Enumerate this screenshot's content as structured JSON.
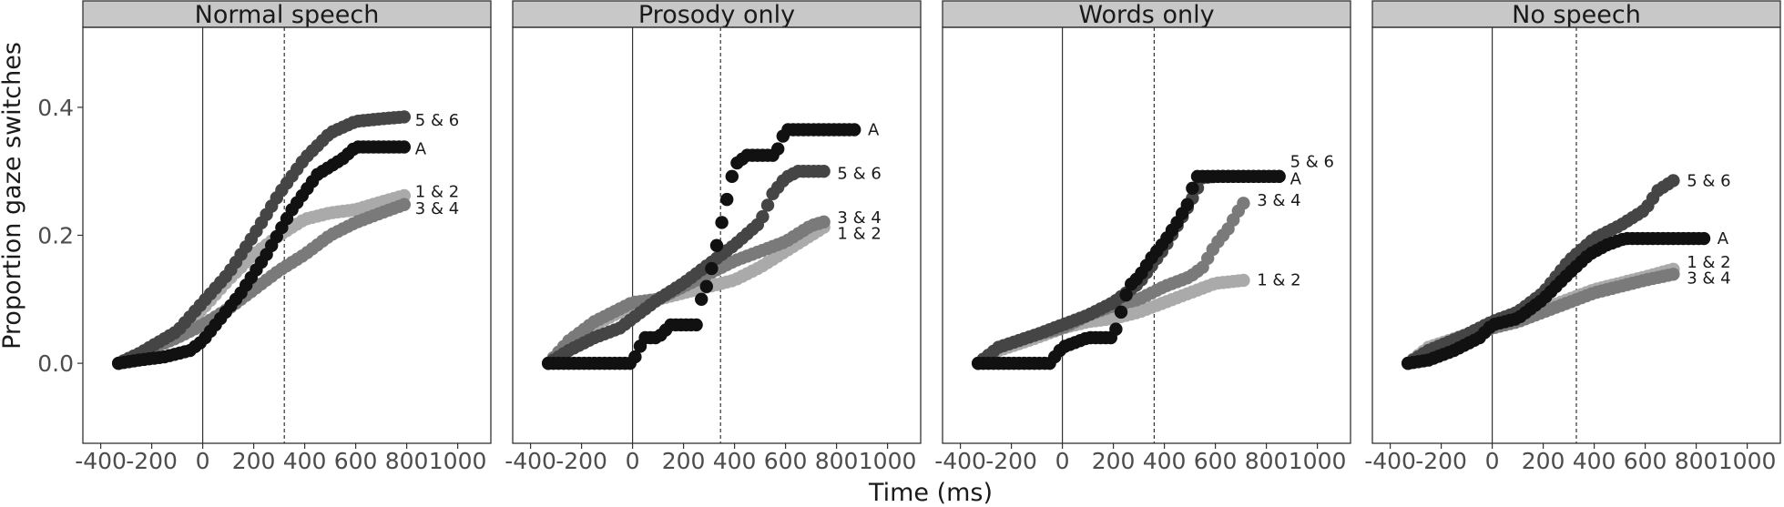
{
  "colors": {
    "A": "#111111",
    "5 & 6": "#454545",
    "3 & 4": "#7a7a7a",
    "1 & 2": "#aaaaaa",
    "strip": "#c8c8c8"
  },
  "chart_data": {
    "type": "scatter",
    "xlabel": "Time (ms)",
    "ylabel": "Proportion gaze switches",
    "xlim": [
      -470,
      1130
    ],
    "ylim": [
      -0.125,
      0.525
    ],
    "x_ticks": [
      -400,
      -200,
      0,
      200,
      400,
      600,
      800,
      1000
    ],
    "x_tick_labels": [
      "-400",
      "-200",
      "0",
      "200",
      "400",
      "600",
      "800",
      "1000"
    ],
    "y_ticks": [
      0.0,
      0.2,
      0.4
    ],
    "y_tick_labels": [
      "0.0",
      "0.2",
      "0.4"
    ],
    "grid": false,
    "series_order": [
      "1 & 2",
      "3 & 4",
      "5 & 6",
      "A"
    ],
    "panels": [
      {
        "title": "Normal speech",
        "vline_dashed": 320,
        "label_positions": {
          "5 & 6": 0.38,
          "A": 0.335,
          "1 & 2": 0.268,
          "3 & 4": 0.242
        },
        "series": [
          {
            "name": "1 & 2",
            "end_x": 790,
            "points": [
              [
                -330,
                0
              ],
              [
                -250,
                0.015
              ],
              [
                -100,
                0.045
              ],
              [
                0,
                0.085
              ],
              [
                100,
                0.13
              ],
              [
                200,
                0.17
              ],
              [
                300,
                0.2
              ],
              [
                400,
                0.225
              ],
              [
                500,
                0.235
              ],
              [
                600,
                0.24
              ],
              [
                700,
                0.252
              ],
              [
                790,
                0.262
              ]
            ]
          },
          {
            "name": "3 & 4",
            "end_x": 790,
            "points": [
              [
                -330,
                0
              ],
              [
                -250,
                0.015
              ],
              [
                -100,
                0.04
              ],
              [
                0,
                0.06
              ],
              [
                100,
                0.085
              ],
              [
                200,
                0.115
              ],
              [
                300,
                0.145
              ],
              [
                400,
                0.17
              ],
              [
                500,
                0.2
              ],
              [
                600,
                0.22
              ],
              [
                700,
                0.235
              ],
              [
                790,
                0.248
              ]
            ]
          },
          {
            "name": "5 & 6",
            "end_x": 790,
            "points": [
              [
                -330,
                0
              ],
              [
                -250,
                0.015
              ],
              [
                -100,
                0.05
              ],
              [
                0,
                0.095
              ],
              [
                100,
                0.14
              ],
              [
                200,
                0.2
              ],
              [
                300,
                0.265
              ],
              [
                400,
                0.32
              ],
              [
                500,
                0.36
              ],
              [
                600,
                0.378
              ],
              [
                700,
                0.382
              ],
              [
                790,
                0.385
              ]
            ]
          },
          {
            "name": "A",
            "end_x": 790,
            "points": [
              [
                -330,
                0
              ],
              [
                -250,
                0.005
              ],
              [
                -150,
                0.01
              ],
              [
                -50,
                0.02
              ],
              [
                0,
                0.035
              ],
              [
                50,
                0.06
              ],
              [
                150,
                0.11
              ],
              [
                250,
                0.17
              ],
              [
                350,
                0.24
              ],
              [
                450,
                0.295
              ],
              [
                550,
                0.32
              ],
              [
                600,
                0.338
              ],
              [
                790,
                0.338
              ]
            ]
          }
        ]
      },
      {
        "title": "Prosody only",
        "vline_dashed": 345,
        "label_positions": {
          "A": 0.365,
          "5 & 6": 0.297,
          "3 & 4": 0.228,
          "1 & 2": 0.203
        },
        "series": [
          {
            "name": "1 & 2",
            "end_x": 760,
            "points": [
              [
                -330,
                0
              ],
              [
                -250,
                0.03
              ],
              [
                -150,
                0.06
              ],
              [
                -50,
                0.08
              ],
              [
                0,
                0.09
              ],
              [
                100,
                0.1
              ],
              [
                200,
                0.11
              ],
              [
                300,
                0.12
              ],
              [
                400,
                0.13
              ],
              [
                500,
                0.15
              ],
              [
                600,
                0.175
              ],
              [
                700,
                0.2
              ],
              [
                760,
                0.215
              ]
            ]
          },
          {
            "name": "3 & 4",
            "end_x": 760,
            "points": [
              [
                -330,
                0
              ],
              [
                -250,
                0.035
              ],
              [
                -150,
                0.065
              ],
              [
                -50,
                0.085
              ],
              [
                0,
                0.095
              ],
              [
                100,
                0.1
              ],
              [
                200,
                0.12
              ],
              [
                300,
                0.14
              ],
              [
                400,
                0.16
              ],
              [
                500,
                0.175
              ],
              [
                600,
                0.19
              ],
              [
                700,
                0.215
              ],
              [
                760,
                0.222
              ]
            ]
          },
          {
            "name": "5 & 6",
            "end_x": 760,
            "points": [
              [
                -330,
                0
              ],
              [
                -250,
                0.02
              ],
              [
                -150,
                0.04
              ],
              [
                -50,
                0.055
              ],
              [
                0,
                0.07
              ],
              [
                100,
                0.1
              ],
              [
                200,
                0.125
              ],
              [
                300,
                0.155
              ],
              [
                400,
                0.185
              ],
              [
                500,
                0.22
              ],
              [
                550,
                0.265
              ],
              [
                600,
                0.29
              ],
              [
                650,
                0.3
              ],
              [
                760,
                0.3
              ]
            ]
          },
          {
            "name": "A",
            "end_x": 880,
            "points": [
              [
                -330,
                0
              ],
              [
                -200,
                0
              ],
              [
                -100,
                0
              ],
              [
                0,
                0
              ],
              [
                20,
                0.02
              ],
              [
                50,
                0.04
              ],
              [
                100,
                0.04
              ],
              [
                150,
                0.06
              ],
              [
                250,
                0.06
              ],
              [
                270,
                0.1
              ],
              [
                300,
                0.13
              ],
              [
                350,
                0.22
              ],
              [
                400,
                0.31
              ],
              [
                450,
                0.325
              ],
              [
                560,
                0.325
              ],
              [
                600,
                0.365
              ],
              [
                880,
                0.365
              ]
            ]
          }
        ]
      },
      {
        "title": "Words only",
        "vline_dashed": 360,
        "label_positions": {
          "5 & 6": 0.315,
          "A": 0.288,
          "3 & 4": 0.255,
          "1 & 2": 0.13
        },
        "series": [
          {
            "name": "1 & 2",
            "end_x": 720,
            "points": [
              [
                -330,
                0
              ],
              [
                -250,
                0.02
              ],
              [
                -100,
                0.04
              ],
              [
                0,
                0.055
              ],
              [
                100,
                0.065
              ],
              [
                200,
                0.07
              ],
              [
                300,
                0.08
              ],
              [
                400,
                0.095
              ],
              [
                500,
                0.11
              ],
              [
                600,
                0.125
              ],
              [
                720,
                0.13
              ]
            ]
          },
          {
            "name": "3 & 4",
            "end_x": 720,
            "points": [
              [
                -330,
                0
              ],
              [
                -250,
                0.025
              ],
              [
                -100,
                0.045
              ],
              [
                0,
                0.055
              ],
              [
                100,
                0.075
              ],
              [
                200,
                0.09
              ],
              [
                300,
                0.1
              ],
              [
                400,
                0.12
              ],
              [
                500,
                0.135
              ],
              [
                550,
                0.15
              ],
              [
                600,
                0.185
              ],
              [
                650,
                0.21
              ],
              [
                700,
                0.245
              ],
              [
                720,
                0.255
              ]
            ]
          },
          {
            "name": "5 & 6",
            "end_x": 850,
            "points": [
              [
                -330,
                0
              ],
              [
                -250,
                0.025
              ],
              [
                -100,
                0.045
              ],
              [
                0,
                0.06
              ],
              [
                100,
                0.075
              ],
              [
                200,
                0.095
              ],
              [
                300,
                0.125
              ],
              [
                400,
                0.18
              ],
              [
                450,
                0.215
              ],
              [
                500,
                0.25
              ],
              [
                550,
                0.29
              ],
              [
                600,
                0.292
              ],
              [
                850,
                0.292
              ]
            ]
          },
          {
            "name": "A",
            "end_x": 850,
            "points": [
              [
                -330,
                0
              ],
              [
                -150,
                0
              ],
              [
                -50,
                0
              ],
              [
                0,
                0.025
              ],
              [
                100,
                0.04
              ],
              [
                200,
                0.04
              ],
              [
                230,
                0.08
              ],
              [
                260,
                0.12
              ],
              [
                300,
                0.135
              ],
              [
                350,
                0.165
              ],
              [
                400,
                0.19
              ],
              [
                450,
                0.22
              ],
              [
                500,
                0.255
              ],
              [
                520,
                0.292
              ],
              [
                850,
                0.292
              ]
            ]
          }
        ]
      },
      {
        "title": "No speech",
        "vline_dashed": 330,
        "label_positions": {
          "5 & 6": 0.285,
          "A": 0.195,
          "1 & 2": 0.158,
          "3 & 4": 0.133
        },
        "series": [
          {
            "name": "1 & 2",
            "end_x": 720,
            "points": [
              [
                -330,
                0
              ],
              [
                -250,
                0.025
              ],
              [
                -100,
                0.045
              ],
              [
                0,
                0.06
              ],
              [
                100,
                0.07
              ],
              [
                200,
                0.085
              ],
              [
                300,
                0.1
              ],
              [
                400,
                0.115
              ],
              [
                500,
                0.125
              ],
              [
                600,
                0.135
              ],
              [
                720,
                0.148
              ]
            ]
          },
          {
            "name": "3 & 4",
            "end_x": 720,
            "points": [
              [
                -330,
                0
              ],
              [
                -250,
                0.02
              ],
              [
                -100,
                0.04
              ],
              [
                0,
                0.055
              ],
              [
                100,
                0.065
              ],
              [
                200,
                0.08
              ],
              [
                300,
                0.095
              ],
              [
                400,
                0.11
              ],
              [
                500,
                0.12
              ],
              [
                600,
                0.13
              ],
              [
                720,
                0.14
              ]
            ]
          },
          {
            "name": "5 & 6",
            "end_x": 720,
            "points": [
              [
                -330,
                0
              ],
              [
                -250,
                0.02
              ],
              [
                -100,
                0.045
              ],
              [
                0,
                0.065
              ],
              [
                100,
                0.08
              ],
              [
                200,
                0.11
              ],
              [
                300,
                0.16
              ],
              [
                400,
                0.195
              ],
              [
                500,
                0.215
              ],
              [
                600,
                0.24
              ],
              [
                650,
                0.27
              ],
              [
                720,
                0.288
              ]
            ]
          },
          {
            "name": "A",
            "end_x": 840,
            "points": [
              [
                -330,
                0
              ],
              [
                -250,
                0.005
              ],
              [
                -150,
                0.02
              ],
              [
                -50,
                0.04
              ],
              [
                0,
                0.06
              ],
              [
                100,
                0.07
              ],
              [
                200,
                0.1
              ],
              [
                300,
                0.14
              ],
              [
                380,
                0.17
              ],
              [
                450,
                0.185
              ],
              [
                520,
                0.195
              ],
              [
                840,
                0.195
              ]
            ]
          }
        ]
      }
    ]
  }
}
